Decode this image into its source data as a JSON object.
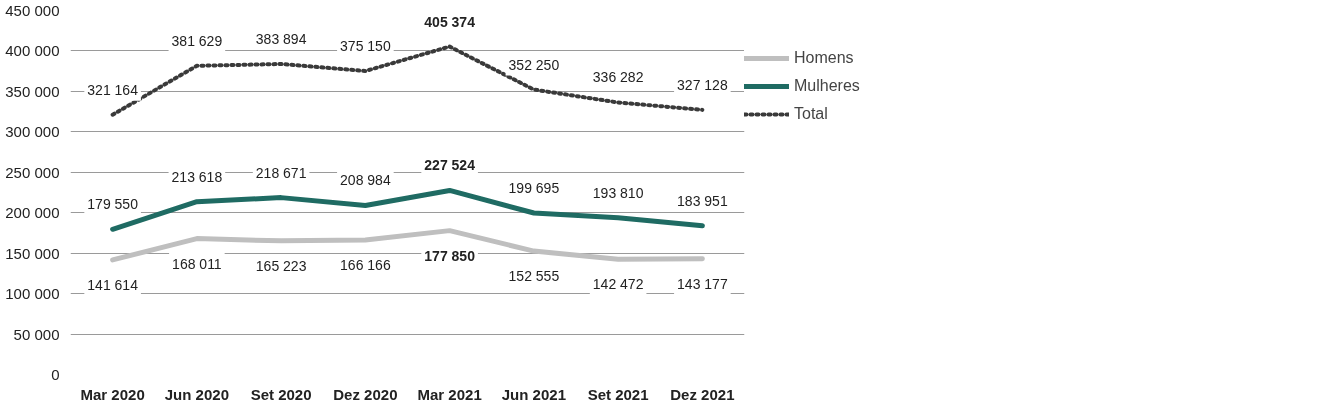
{
  "chart_data": {
    "type": "line",
    "categories": [
      "Mar 2020",
      "Jun 2020",
      "Set 2020",
      "Dez 2020",
      "Mar 2021",
      "Jun 2021",
      "Set 2021",
      "Dez 2021"
    ],
    "series": [
      {
        "name": "Homens",
        "color": "#bfbfbf",
        "line_style": "solid",
        "values": [
          141614,
          168011,
          165223,
          166166,
          177850,
          152555,
          142472,
          143177
        ],
        "value_labels": [
          "141 614",
          "168 011",
          "165 223",
          "166 166",
          "177 850",
          "152 555",
          "142 472",
          "143 177"
        ]
      },
      {
        "name": "Mulheres",
        "color": "#1f6b63",
        "line_style": "solid",
        "values": [
          179550,
          213618,
          218671,
          208984,
          227524,
          199695,
          193810,
          183951
        ],
        "value_labels": [
          "179 550",
          "213 618",
          "218 671",
          "208 984",
          "227 524",
          "199 695",
          "193 810",
          "183 951"
        ]
      },
      {
        "name": "Total",
        "color": "#3a3a3a",
        "line_style": "dotted",
        "values": [
          321164,
          381629,
          383894,
          375150,
          405374,
          352250,
          336282,
          327128
        ],
        "value_labels": [
          "321 164",
          "381 629",
          "383 894",
          "375 150",
          "405 374",
          "352 250",
          "336 282",
          "327 128"
        ]
      }
    ],
    "ylim": [
      0,
      450000
    ],
    "yticks": [
      0,
      {
        "value": 50000,
        "label": "50 000"
      },
      {
        "value": 100000,
        "label": "100 000"
      },
      {
        "value": 150000,
        "label": "150 000"
      },
      {
        "value": 200000,
        "label": "200 000"
      },
      {
        "value": 250000,
        "label": "250 000"
      },
      {
        "value": 300000,
        "label": "300 000"
      },
      {
        "value": 350000,
        "label": "350 000"
      },
      {
        "value": 400000,
        "label": "400 000"
      },
      {
        "value": 450000,
        "label": "450 000"
      }
    ],
    "grid": "y",
    "legend": "top right",
    "marker": "none"
  }
}
